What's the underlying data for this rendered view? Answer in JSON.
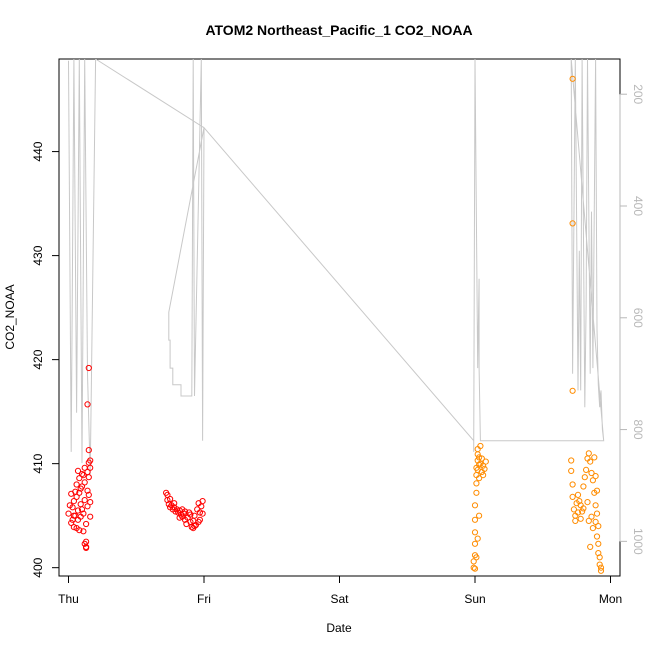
{
  "chart_data": {
    "type": "scatter",
    "title": "ATOM2 Northeast_Pacific_1 CO2_NOAA",
    "xlabel": "Date",
    "ylabel": "CO2_NOAA",
    "x_ticks": [
      "Thu",
      "Fri",
      "Sat",
      "Sun",
      "Mon"
    ],
    "x_tick_values": [
      0,
      1,
      2,
      3,
      4
    ],
    "xlim": [
      -0.07,
      4.07
    ],
    "ylim": [
      399.2,
      448.9
    ],
    "y_ticks": [
      400,
      410,
      420,
      430,
      440
    ],
    "y2_ticks": [
      200,
      400,
      600,
      800,
      1000
    ],
    "y2lim": [
      1062,
      137
    ],
    "grid": false,
    "series": [
      {
        "color": "#ff0000",
        "marker": "open-circle",
        "points": [
          [
            0.0,
            405.2
          ],
          [
            0.01,
            406.0
          ],
          [
            0.02,
            407.1
          ],
          [
            0.02,
            404.3
          ],
          [
            0.03,
            405.8
          ],
          [
            0.04,
            406.4
          ],
          [
            0.04,
            403.9
          ],
          [
            0.05,
            407.3
          ],
          [
            0.05,
            405.0
          ],
          [
            0.06,
            408.0
          ],
          [
            0.06,
            406.8
          ],
          [
            0.07,
            405.5
          ],
          [
            0.07,
            404.6
          ],
          [
            0.08,
            408.6
          ],
          [
            0.08,
            407.2
          ],
          [
            0.09,
            406.1
          ],
          [
            0.09,
            404.9
          ],
          [
            0.1,
            409.0
          ],
          [
            0.1,
            407.8
          ],
          [
            0.11,
            405.2
          ],
          [
            0.11,
            403.5
          ],
          [
            0.12,
            408.2
          ],
          [
            0.12,
            406.5
          ],
          [
            0.13,
            404.2
          ],
          [
            0.13,
            402.5
          ],
          [
            0.13,
            401.9
          ],
          [
            0.14,
            407.4
          ],
          [
            0.14,
            405.9
          ],
          [
            0.14,
            409.2
          ],
          [
            0.15,
            410.1
          ],
          [
            0.15,
            408.7
          ],
          [
            0.15,
            407.0
          ],
          [
            0.16,
            409.6
          ],
          [
            0.16,
            406.3
          ],
          [
            0.16,
            404.9
          ],
          [
            0.14,
            415.7
          ],
          [
            0.15,
            419.2
          ],
          [
            0.15,
            411.3
          ],
          [
            0.07,
            409.3
          ],
          [
            0.03,
            404.6
          ],
          [
            0.06,
            403.8
          ],
          [
            0.12,
            402.3
          ],
          [
            0.13,
            402.0
          ],
          [
            0.09,
            407.6
          ],
          [
            0.11,
            408.9
          ],
          [
            0.04,
            405.0
          ],
          [
            0.1,
            405.6
          ],
          [
            0.08,
            403.6
          ],
          [
            0.16,
            410.3
          ],
          [
            0.12,
            409.6
          ],
          [
            0.72,
            407.2
          ],
          [
            0.73,
            406.5
          ],
          [
            0.74,
            406.1
          ],
          [
            0.75,
            405.8
          ],
          [
            0.76,
            406.0
          ],
          [
            0.77,
            405.6
          ],
          [
            0.78,
            405.8
          ],
          [
            0.79,
            405.4
          ],
          [
            0.8,
            405.6
          ],
          [
            0.81,
            405.3
          ],
          [
            0.82,
            405.5
          ],
          [
            0.83,
            405.1
          ],
          [
            0.84,
            404.9
          ],
          [
            0.85,
            405.2
          ],
          [
            0.86,
            404.6
          ],
          [
            0.87,
            404.2
          ],
          [
            0.88,
            404.8
          ],
          [
            0.89,
            405.3
          ],
          [
            0.9,
            404.4
          ],
          [
            0.91,
            403.9
          ],
          [
            0.92,
            404.5
          ],
          [
            0.93,
            405.0
          ],
          [
            0.94,
            404.1
          ],
          [
            0.95,
            405.6
          ],
          [
            0.96,
            406.2
          ],
          [
            0.97,
            404.6
          ],
          [
            0.98,
            405.9
          ],
          [
            0.99,
            406.4
          ],
          [
            0.75,
            406.6
          ],
          [
            0.78,
            406.2
          ],
          [
            0.82,
            404.8
          ],
          [
            0.86,
            405.4
          ],
          [
            0.9,
            405.1
          ],
          [
            0.93,
            404.0
          ],
          [
            0.96,
            404.4
          ],
          [
            0.99,
            405.2
          ],
          [
            0.73,
            407.0
          ],
          [
            0.84,
            405.6
          ],
          [
            0.92,
            403.8
          ],
          [
            0.97,
            405.3
          ]
        ]
      },
      {
        "color": "#ff8c00",
        "marker": "open-circle",
        "points": [
          [
            2.99,
            400.0
          ],
          [
            2.99,
            400.6
          ],
          [
            3.0,
            401.2
          ],
          [
            3.0,
            402.3
          ],
          [
            3.0,
            403.4
          ],
          [
            3.0,
            404.6
          ],
          [
            3.0,
            406.0
          ],
          [
            3.01,
            407.2
          ],
          [
            3.01,
            408.1
          ],
          [
            3.01,
            408.9
          ],
          [
            3.01,
            409.6
          ],
          [
            3.02,
            410.3
          ],
          [
            3.02,
            410.9
          ],
          [
            3.02,
            411.4
          ],
          [
            3.02,
            409.4
          ],
          [
            3.03,
            408.6
          ],
          [
            3.03,
            409.9
          ],
          [
            3.03,
            410.6
          ],
          [
            3.04,
            411.7
          ],
          [
            3.04,
            410.0
          ],
          [
            3.05,
            409.2
          ],
          [
            3.05,
            410.5
          ],
          [
            3.06,
            409.8
          ],
          [
            3.06,
            408.9
          ],
          [
            3.07,
            409.5
          ],
          [
            3.08,
            410.2
          ],
          [
            3.01,
            401.0
          ],
          [
            3.0,
            399.9
          ],
          [
            3.02,
            402.8
          ],
          [
            3.03,
            405.0
          ],
          [
            3.72,
            447.0
          ],
          [
            3.72,
            433.1
          ],
          [
            3.72,
            417.0
          ],
          [
            3.71,
            410.3
          ],
          [
            3.71,
            409.3
          ],
          [
            3.72,
            408.0
          ],
          [
            3.72,
            406.8
          ],
          [
            3.73,
            405.6
          ],
          [
            3.74,
            405.0
          ],
          [
            3.75,
            406.2
          ],
          [
            3.76,
            407.0
          ],
          [
            3.77,
            406.4
          ],
          [
            3.78,
            406.0
          ],
          [
            3.79,
            405.4
          ],
          [
            3.8,
            407.8
          ],
          [
            3.81,
            408.7
          ],
          [
            3.82,
            409.4
          ],
          [
            3.83,
            410.5
          ],
          [
            3.84,
            411.0
          ],
          [
            3.85,
            410.2
          ],
          [
            3.86,
            409.1
          ],
          [
            3.87,
            408.4
          ],
          [
            3.88,
            410.6
          ],
          [
            3.88,
            407.2
          ],
          [
            3.89,
            406.0
          ],
          [
            3.89,
            404.4
          ],
          [
            3.9,
            405.2
          ],
          [
            3.9,
            403.0
          ],
          [
            3.91,
            402.3
          ],
          [
            3.91,
            401.4
          ],
          [
            3.92,
            401.0
          ],
          [
            3.92,
            400.3
          ],
          [
            3.93,
            400.0
          ],
          [
            3.93,
            399.7
          ],
          [
            3.86,
            404.9
          ],
          [
            3.87,
            403.8
          ],
          [
            3.85,
            402.0
          ],
          [
            3.84,
            404.5
          ],
          [
            3.83,
            406.3
          ],
          [
            3.8,
            405.7
          ],
          [
            3.78,
            404.7
          ],
          [
            3.76,
            405.3
          ],
          [
            3.74,
            404.5
          ],
          [
            3.9,
            407.4
          ],
          [
            3.89,
            408.8
          ],
          [
            3.91,
            404.0
          ]
        ]
      }
    ],
    "altitude_line": {
      "color": "#c8c8c8",
      "axis": "right",
      "points": [
        [
          0.0,
          140
        ],
        [
          0.02,
          840
        ],
        [
          0.04,
          137
        ],
        [
          0.06,
          770
        ],
        [
          0.08,
          137
        ],
        [
          0.1,
          860
        ],
        [
          0.12,
          137
        ],
        [
          0.14,
          700
        ],
        [
          0.16,
          880
        ],
        [
          0.2,
          137
        ],
        [
          1.0,
          260
        ],
        [
          0.74,
          590
        ],
        [
          0.74,
          640
        ],
        [
          0.75,
          640
        ],
        [
          0.75,
          690
        ],
        [
          0.77,
          690
        ],
        [
          0.77,
          720
        ],
        [
          0.83,
          720
        ],
        [
          0.83,
          740
        ],
        [
          0.91,
          740
        ],
        [
          0.92,
          137
        ],
        [
          0.93,
          740
        ],
        [
          0.98,
          137
        ],
        [
          0.99,
          820
        ],
        [
          1.0,
          260
        ],
        [
          2.99,
          820
        ],
        [
          2.99,
          840
        ],
        [
          3.0,
          137
        ],
        [
          3.02,
          690
        ],
        [
          3.03,
          530
        ],
        [
          3.03,
          690
        ],
        [
          3.04,
          820
        ],
        [
          3.95,
          820
        ],
        [
          3.71,
          137
        ],
        [
          3.72,
          700
        ],
        [
          3.74,
          137
        ],
        [
          3.76,
          730
        ],
        [
          3.77,
          480
        ],
        [
          3.78,
          730
        ],
        [
          3.79,
          137
        ],
        [
          3.81,
          760
        ],
        [
          3.82,
          580
        ],
        [
          3.83,
          137
        ],
        [
          3.85,
          700
        ],
        [
          3.86,
          410
        ],
        [
          3.87,
          690
        ],
        [
          3.89,
          137
        ],
        [
          3.9,
          620
        ],
        [
          3.91,
          720
        ],
        [
          3.92,
          760
        ],
        [
          3.93,
          730
        ],
        [
          3.94,
          800
        ],
        [
          3.95,
          820
        ]
      ]
    }
  }
}
